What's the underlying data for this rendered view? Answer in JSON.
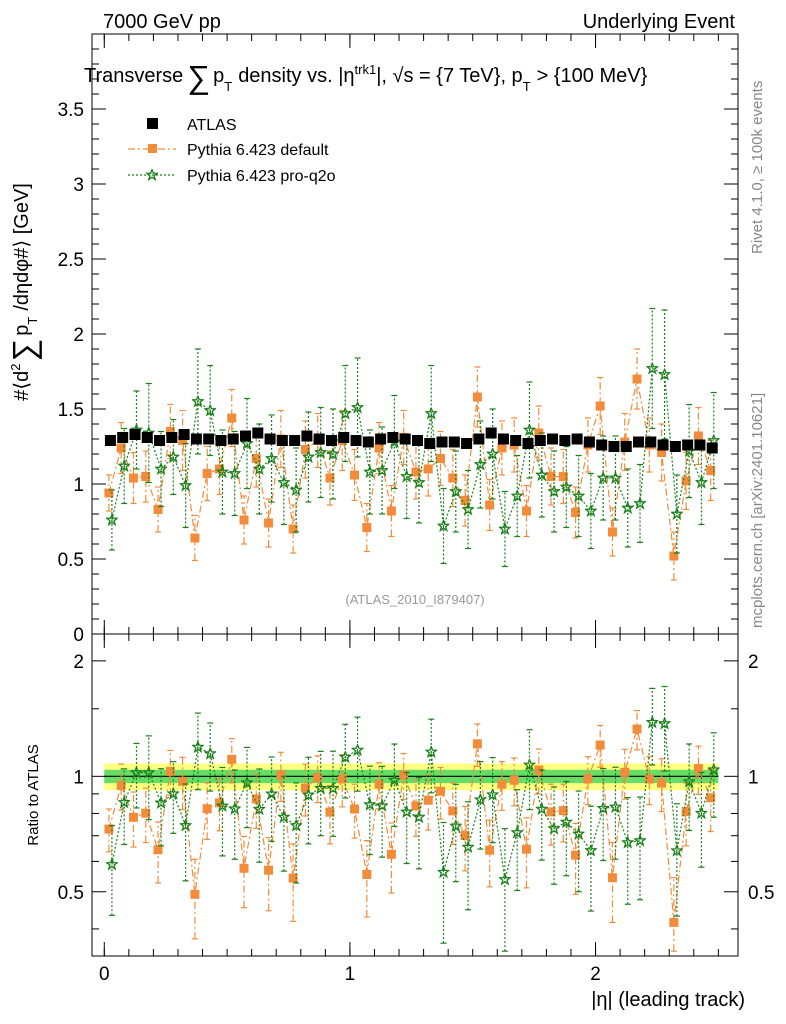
{
  "header": {
    "left": "7000 GeV pp",
    "right": "Underlying Event"
  },
  "side_labels": {
    "rivet": "Rivet 4.1.0, ≥ 100k events",
    "mcplots": "mcplots.cern.ch [arXiv:2401.10621]"
  },
  "colors": {
    "atlas": "#000000",
    "default": "#f28c3a",
    "proq2o": "#1a7f1a",
    "band_outer": "#ffff80",
    "band_inner": "#66dd66"
  },
  "chart_data": [
    {
      "type": "scatter",
      "panel": "main",
      "title": "Transverse ∑ p_T density vs. |η^trk1|, √s = {7 TeV}, p_T > {100 MeV}",
      "title_parts": {
        "a": "Transverse",
        "sum": "∑",
        "p": "p",
        "T": "T",
        "b": "density vs. |η",
        "trk1": "trk1",
        "c": "|, √s = {7 TeV}, p",
        "T2": "T",
        "d": "> {100 MeV}"
      },
      "ylabel": "#⟨d² ∑ p_T /dηdφ#⟩ [GeV]",
      "ylabel_parts": {
        "a": "#⟨d",
        "sup": "2",
        "sum": "∑",
        "p": "p",
        "T": "T",
        "b": "/dηdφ#⟩ [GeV]"
      },
      "xlim": [
        -0.05,
        2.58
      ],
      "ylim": [
        0,
        4.0
      ],
      "yticks": [
        0,
        0.5,
        1,
        1.5,
        2,
        2.5,
        3,
        3.5
      ],
      "ytick_labels": [
        "0",
        "0.5",
        "1",
        "1.5",
        "2",
        "2.5",
        "3",
        "3.5"
      ],
      "watermark": "(ATLAS_2010_I879407)",
      "legend": [
        "ATLAS",
        "Pythia 6.423 default",
        "Pythia 6.423 pro-q2o"
      ],
      "x": [
        0.025,
        0.075,
        0.125,
        0.175,
        0.225,
        0.275,
        0.325,
        0.375,
        0.425,
        0.475,
        0.525,
        0.575,
        0.625,
        0.675,
        0.725,
        0.775,
        0.825,
        0.875,
        0.925,
        0.975,
        1.025,
        1.075,
        1.125,
        1.175,
        1.225,
        1.275,
        1.325,
        1.375,
        1.425,
        1.475,
        1.525,
        1.575,
        1.625,
        1.675,
        1.725,
        1.775,
        1.825,
        1.875,
        1.925,
        1.975,
        2.025,
        2.075,
        2.125,
        2.175,
        2.225,
        2.275,
        2.325,
        2.375,
        2.425,
        2.475
      ],
      "series": [
        {
          "name": "ATLAS",
          "values": [
            1.29,
            1.31,
            1.33,
            1.31,
            1.29,
            1.31,
            1.33,
            1.3,
            1.3,
            1.29,
            1.3,
            1.32,
            1.34,
            1.3,
            1.29,
            1.29,
            1.32,
            1.3,
            1.29,
            1.31,
            1.29,
            1.28,
            1.3,
            1.31,
            1.3,
            1.29,
            1.27,
            1.28,
            1.28,
            1.27,
            1.3,
            1.34,
            1.3,
            1.29,
            1.27,
            1.29,
            1.3,
            1.29,
            1.3,
            1.28,
            1.26,
            1.25,
            1.25,
            1.28,
            1.28,
            1.26,
            1.25,
            1.26,
            1.26,
            1.24
          ],
          "errors": [
            0.02,
            0.02,
            0.02,
            0.02,
            0.02,
            0.02,
            0.02,
            0.02,
            0.02,
            0.02,
            0.02,
            0.02,
            0.02,
            0.02,
            0.02,
            0.02,
            0.02,
            0.02,
            0.02,
            0.02,
            0.02,
            0.02,
            0.02,
            0.02,
            0.02,
            0.02,
            0.02,
            0.02,
            0.02,
            0.02,
            0.02,
            0.02,
            0.02,
            0.02,
            0.02,
            0.02,
            0.02,
            0.02,
            0.02,
            0.02,
            0.02,
            0.02,
            0.02,
            0.02,
            0.02,
            0.02,
            0.02,
            0.02,
            0.02,
            0.02
          ]
        },
        {
          "name": "Pythia 6.423 default",
          "values": [
            0.94,
            1.24,
            1.04,
            1.05,
            0.83,
            1.35,
            1.29,
            0.64,
            1.07,
            1.1,
            1.44,
            0.76,
            1.17,
            0.74,
            1.3,
            0.7,
            1.23,
            1.29,
            1.04,
            1.29,
            1.06,
            0.71,
            1.24,
            0.82,
            1.31,
            1.08,
            1.1,
            1.17,
            1.04,
            0.89,
            1.58,
            0.86,
            1.24,
            1.26,
            0.82,
            1.34,
            1.05,
            1.05,
            0.81,
            1.26,
            1.52,
            0.68,
            1.28,
            1.7,
            1.26,
            1.21,
            0.52,
            1.02,
            1.32,
            1.09
          ],
          "errors": [
            0.12,
            0.17,
            0.17,
            0.17,
            0.15,
            0.18,
            0.2,
            0.15,
            0.18,
            0.17,
            0.19,
            0.16,
            0.19,
            0.16,
            0.19,
            0.16,
            0.19,
            0.18,
            0.18,
            0.2,
            0.17,
            0.16,
            0.17,
            0.17,
            0.18,
            0.18,
            0.18,
            0.18,
            0.19,
            0.17,
            0.2,
            0.17,
            0.18,
            0.18,
            0.17,
            0.18,
            0.19,
            0.18,
            0.17,
            0.18,
            0.19,
            0.16,
            0.19,
            0.2,
            0.18,
            0.19,
            0.16,
            0.19,
            0.19,
            0.2
          ]
        },
        {
          "name": "Pythia 6.423 pro-q2o",
          "values": [
            0.76,
            1.12,
            1.36,
            1.34,
            1.1,
            1.18,
            0.99,
            1.55,
            1.49,
            1.08,
            1.07,
            1.27,
            1.1,
            1.17,
            1.01,
            0.96,
            1.18,
            1.21,
            1.2,
            1.47,
            1.51,
            1.08,
            1.09,
            1.28,
            1.05,
            1.01,
            1.47,
            0.72,
            0.95,
            0.83,
            1.13,
            1.2,
            0.7,
            0.92,
            1.36,
            1.06,
            0.95,
            0.98,
            0.92,
            0.82,
            1.04,
            1.04,
            0.84,
            0.87,
            1.77,
            1.73,
            0.8,
            1.22,
            1.01,
            1.29
          ],
          "errors": [
            0.2,
            0.25,
            0.26,
            0.33,
            0.25,
            0.25,
            0.28,
            0.35,
            0.3,
            0.28,
            0.28,
            0.3,
            0.3,
            0.29,
            0.28,
            0.28,
            0.3,
            0.3,
            0.3,
            0.32,
            0.33,
            0.28,
            0.29,
            0.31,
            0.28,
            0.27,
            0.32,
            0.25,
            0.27,
            0.26,
            0.29,
            0.3,
            0.25,
            0.27,
            0.32,
            0.28,
            0.27,
            0.27,
            0.27,
            0.25,
            0.28,
            0.28,
            0.26,
            0.26,
            0.4,
            0.43,
            0.26,
            0.31,
            0.28,
            0.32
          ]
        }
      ]
    },
    {
      "type": "scatter",
      "panel": "ratio",
      "xlabel": "|η| (leading track)",
      "ylabel": "Ratio to ATLAS",
      "xlim": [
        -0.05,
        2.58
      ],
      "ylim": [
        0.34,
        2.35
      ],
      "xticks": [
        0,
        1,
        2
      ],
      "xtick_labels": [
        "0",
        "1",
        "2"
      ],
      "yticks": [
        0.5,
        1,
        2
      ],
      "ytick_labels_left": [
        "0.5",
        "1",
        "2"
      ],
      "ytick_labels_right": [
        "0.5",
        "1",
        "2"
      ],
      "band_outer_halfwidth": 0.08,
      "band_inner_halfwidth": 0.04,
      "reference_line": 1.0
    }
  ]
}
